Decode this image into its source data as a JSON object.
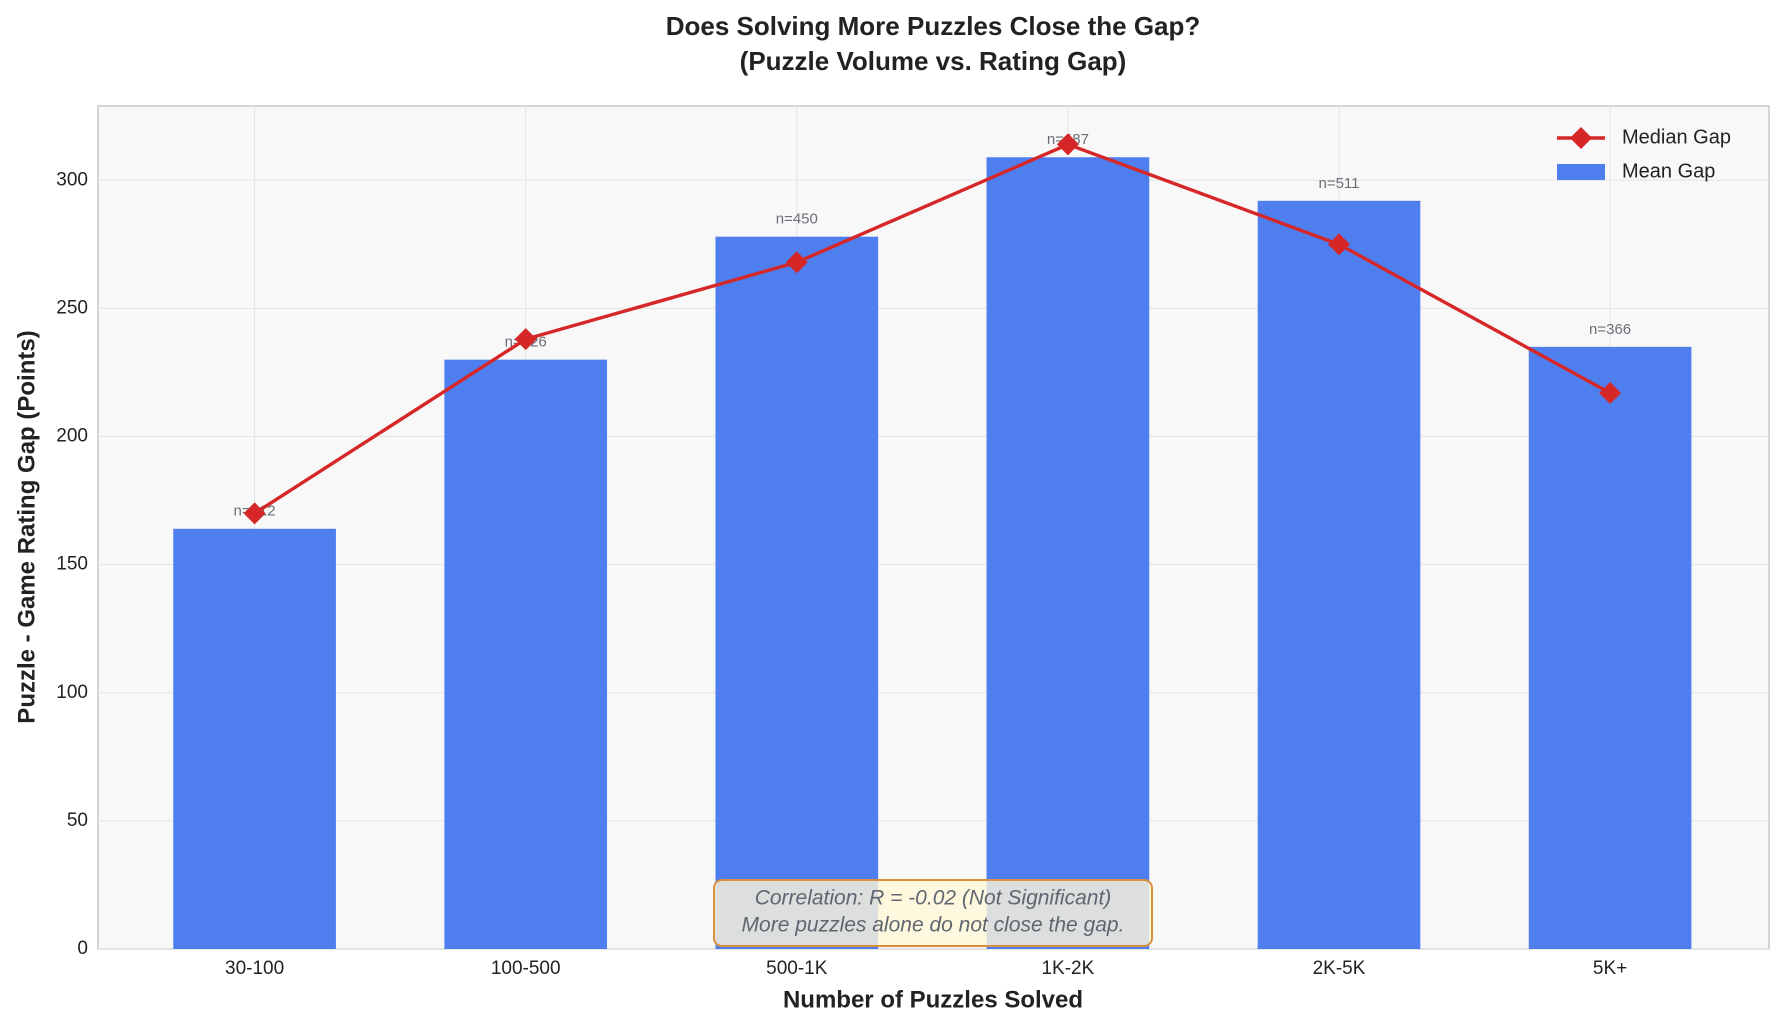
{
  "chart_data": {
    "type": "bar",
    "title": "Does Solving More Puzzles Close the Gap?",
    "subtitle": "(Puzzle Volume vs. Rating Gap)",
    "x_label": "Number of Puzzles Solved",
    "y_label": "Puzzle - Game Rating Gap (Points)",
    "categories": [
      "30-100",
      "100-500",
      "500-1K",
      "1K-2K",
      "2K-5K",
      "5K+"
    ],
    "series": [
      {
        "name": "Median Gap",
        "type": "line",
        "color": "#d62728",
        "values": [
          170,
          238,
          268,
          314,
          275,
          217
        ]
      },
      {
        "name": "Mean Gap",
        "type": "bar",
        "color": "#4f7fee",
        "values": [
          164,
          230,
          278,
          309,
          292,
          235
        ]
      }
    ],
    "sample_labels": [
      "n=212",
      "n=326",
      "n=450",
      "n=487",
      "n=511",
      "n=366"
    ],
    "annotation": [
      "Correlation: R = -0.02 (Not Significant)",
      "More puzzles alone do not close the gap."
    ],
    "ylim": [
      0,
      329
    ],
    "yticks": [
      0,
      50,
      100,
      150,
      200,
      250,
      300
    ],
    "grid": true,
    "legend": "upper right"
  }
}
